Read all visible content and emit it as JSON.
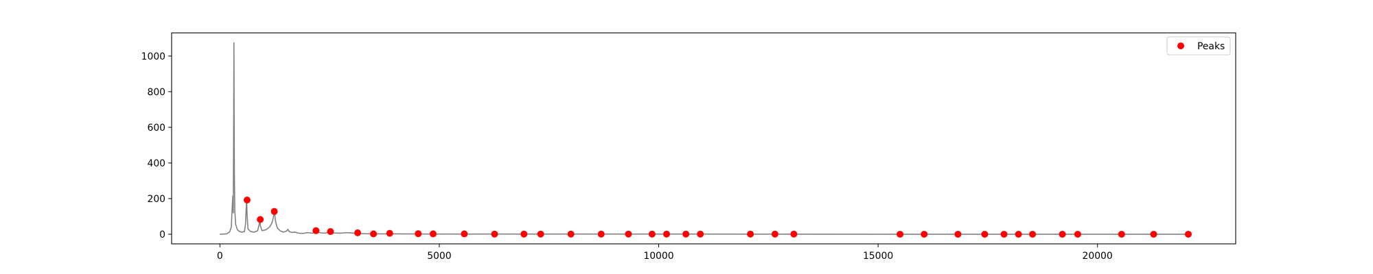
{
  "chart_data": {
    "type": "line",
    "title": "",
    "xlabel": "",
    "ylabel": "",
    "xlim": [
      -1100,
      23150
    ],
    "ylim": [
      -54,
      1130
    ],
    "x_ticks": [
      0,
      5000,
      10000,
      15000,
      20000
    ],
    "x_tick_labels": [
      "0",
      "5000",
      "10000",
      "15000",
      "20000"
    ],
    "y_ticks": [
      0,
      200,
      400,
      600,
      800,
      1000
    ],
    "y_tick_labels": [
      "0",
      "200",
      "400",
      "600",
      "800",
      "1000"
    ],
    "grid": false,
    "legend": {
      "position": "top-right",
      "entries": [
        "Peaks"
      ]
    },
    "series": [
      {
        "kind": "line",
        "color": "#808080",
        "points": [
          [
            0,
            0
          ],
          [
            150,
            2
          ],
          [
            220,
            12
          ],
          [
            260,
            40
          ],
          [
            280,
            150
          ],
          [
            295,
            215
          ],
          [
            305,
            120
          ],
          [
            310,
            380
          ],
          [
            315,
            680
          ],
          [
            320,
            1075
          ],
          [
            325,
            700
          ],
          [
            330,
            360
          ],
          [
            340,
            130
          ],
          [
            360,
            55
          ],
          [
            400,
            25
          ],
          [
            450,
            15
          ],
          [
            500,
            12
          ],
          [
            560,
            15
          ],
          [
            585,
            60
          ],
          [
            600,
            150
          ],
          [
            610,
            190
          ],
          [
            620,
            110
          ],
          [
            640,
            30
          ],
          [
            700,
            15
          ],
          [
            780,
            12
          ],
          [
            860,
            20
          ],
          [
            895,
            55
          ],
          [
            910,
            85
          ],
          [
            925,
            45
          ],
          [
            960,
            20
          ],
          [
            1050,
            25
          ],
          [
            1130,
            40
          ],
          [
            1180,
            60
          ],
          [
            1210,
            85
          ],
          [
            1240,
            128
          ],
          [
            1270,
            70
          ],
          [
            1310,
            35
          ],
          [
            1380,
            18
          ],
          [
            1450,
            12
          ],
          [
            1520,
            18
          ],
          [
            1550,
            28
          ],
          [
            1580,
            15
          ],
          [
            1650,
            10
          ],
          [
            1700,
            12
          ],
          [
            1800,
            6
          ],
          [
            1900,
            5
          ],
          [
            2000,
            9
          ],
          [
            2100,
            6
          ],
          [
            2200,
            12
          ],
          [
            2300,
            8
          ],
          [
            2400,
            6
          ],
          [
            2500,
            14
          ],
          [
            2600,
            7
          ],
          [
            2750,
            6
          ],
          [
            2900,
            9
          ],
          [
            3100,
            5
          ],
          [
            3300,
            3
          ],
          [
            3600,
            2
          ],
          [
            4000,
            2
          ],
          [
            5000,
            1
          ],
          [
            7000,
            1
          ],
          [
            10000,
            1
          ],
          [
            15000,
            0
          ],
          [
            20000,
            0
          ],
          [
            22050,
            0
          ]
        ]
      },
      {
        "kind": "scatter",
        "name": "Peaks",
        "color": "#ff0000",
        "points": [
          [
            620,
            192
          ],
          [
            920,
            83
          ],
          [
            1240,
            128
          ],
          [
            2190,
            20
          ],
          [
            2520,
            15
          ],
          [
            3140,
            8
          ],
          [
            3500,
            2
          ],
          [
            3870,
            5
          ],
          [
            4520,
            3
          ],
          [
            4860,
            2
          ],
          [
            5570,
            2
          ],
          [
            6260,
            1
          ],
          [
            6930,
            1
          ],
          [
            7310,
            1
          ],
          [
            8000,
            1
          ],
          [
            8690,
            1
          ],
          [
            9310,
            1
          ],
          [
            9850,
            1
          ],
          [
            10180,
            1
          ],
          [
            10620,
            1
          ],
          [
            10950,
            1
          ],
          [
            12090,
            1
          ],
          [
            12650,
            1
          ],
          [
            13080,
            1
          ],
          [
            15500,
            0
          ],
          [
            16050,
            0
          ],
          [
            16820,
            0
          ],
          [
            17430,
            0
          ],
          [
            17870,
            0
          ],
          [
            18200,
            0
          ],
          [
            18520,
            0
          ],
          [
            19200,
            0
          ],
          [
            19550,
            0
          ],
          [
            20550,
            0
          ],
          [
            21280,
            0
          ],
          [
            22070,
            0
          ]
        ]
      }
    ]
  }
}
